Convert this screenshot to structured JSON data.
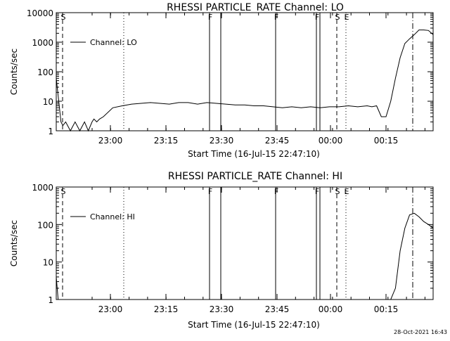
{
  "footer_timestamp": "28-Oct-2021 16:43",
  "chart_data": [
    {
      "type": "line",
      "title": "RHESSI PARTICLE_RATE Channel: LO",
      "xlabel": "Start Time (16-Jul-15 22:47:10)",
      "ylabel": "Counts/sec",
      "yscale": "log",
      "ylim": [
        1,
        10000
      ],
      "y_tick_labels": [
        "1",
        "10",
        "100",
        "1000",
        "10000"
      ],
      "y_tick_values": [
        1,
        10,
        100,
        1000,
        10000
      ],
      "xlim_minutes": [
        0,
        40
      ],
      "x_tick_labels": [
        "23:00",
        "23:15",
        "23:30",
        "23:45",
        "00:00",
        "00:15"
      ],
      "x_tick_minutes": [
        -1.9,
        0.5,
        11.8,
        20.5,
        31.5,
        39.0
      ],
      "legend": "Channel: LO",
      "legend_position": "top-left",
      "markers": [
        {
          "label": "S",
          "type": "dashed",
          "minute": -2.8
        },
        {
          "label": "",
          "type": "dotted",
          "minute": 3.8
        },
        {
          "label": "F",
          "type": "solid",
          "minute": 20.0
        },
        {
          "label": "",
          "type": "solid",
          "minute": 20.6
        },
        {
          "label": "F",
          "type": "solid",
          "minute": 28.5
        },
        {
          "label": "F",
          "type": "solid",
          "minute": 34.1
        },
        {
          "label": "",
          "type": "solid",
          "minute": 34.5
        },
        {
          "label": "S",
          "type": "dashed",
          "minute": 35.1
        },
        {
          "label": "E",
          "type": "dotted",
          "minute": 35.8
        },
        {
          "label": "",
          "type": "dashdot",
          "minute": 38.0
        }
      ],
      "series": [
        {
          "name": "Channel: LO",
          "x": [
            0,
            0.3,
            0.5,
            0.7,
            1.0,
            1.5,
            2.0,
            2.5,
            3.0,
            3.4,
            3.8,
            4.0,
            4.3,
            4.6,
            5.0,
            6.0,
            7.0,
            8.0,
            9.0,
            10.0,
            11.0,
            12.0,
            13.0,
            14.0,
            15.0,
            16.0,
            17.0,
            18.0,
            19.0,
            20.0,
            21.0,
            22.0,
            23.0,
            24.0,
            25.0,
            26.0,
            27.0,
            28.0,
            29.0,
            30.0,
            31.0,
            32.0,
            33.0,
            33.5,
            34.0,
            34.5,
            35.0,
            35.5,
            36.0,
            36.5,
            37.0,
            37.5,
            38.0,
            38.5,
            39.0,
            39.5,
            40.0
          ],
          "values": [
            60,
            8,
            2,
            1.5,
            2,
            1,
            2,
            1,
            2,
            1,
            2,
            2.5,
            2,
            2.5,
            3,
            6,
            7,
            8,
            8.5,
            9,
            8.5,
            8,
            9,
            9,
            8,
            9,
            8.5,
            8,
            7.5,
            7.5,
            7,
            7,
            6.5,
            6,
            6.5,
            6,
            6.5,
            6,
            6.5,
            6.5,
            7,
            6.5,
            7,
            6.5,
            7,
            3,
            3,
            10,
            60,
            300,
            900,
            1300,
            1800,
            2600,
            2600,
            2500,
            1800
          ]
        }
      ]
    },
    {
      "type": "line",
      "title": "RHESSI PARTICLE_RATE Channel: HI",
      "xlabel": "Start Time (16-Jul-15 22:47:10)",
      "ylabel": "Counts/sec",
      "yscale": "log",
      "ylim": [
        1,
        1000
      ],
      "y_tick_labels": [
        "1",
        "10",
        "100",
        "1000"
      ],
      "y_tick_values": [
        1,
        10,
        100,
        1000
      ],
      "xlim_minutes": [
        0,
        40
      ],
      "x_tick_labels": [
        "23:00",
        "23:15",
        "23:30",
        "23:45",
        "00:00",
        "00:15"
      ],
      "x_tick_minutes": [
        -1.9,
        0.5,
        11.8,
        20.5,
        31.5,
        39.0
      ],
      "legend": "Channel: HI",
      "legend_position": "top-left",
      "markers": [
        {
          "label": "S",
          "type": "dashed",
          "minute": -2.8
        },
        {
          "label": "",
          "type": "dotted",
          "minute": 3.8
        },
        {
          "label": "F",
          "type": "solid",
          "minute": 20.0
        },
        {
          "label": "",
          "type": "solid",
          "minute": 20.6
        },
        {
          "label": "F",
          "type": "solid",
          "minute": 28.5
        },
        {
          "label": "F",
          "type": "solid",
          "minute": 34.1
        },
        {
          "label": "",
          "type": "solid",
          "minute": 34.5
        },
        {
          "label": "S",
          "type": "dashed",
          "minute": 35.1
        },
        {
          "label": "E",
          "type": "dotted",
          "minute": 35.8
        },
        {
          "label": "",
          "type": "dashdot",
          "minute": 38.0
        }
      ],
      "series": [
        {
          "name": "Channel: HI",
          "x": [
            0,
            0.2,
            35.5,
            36.0,
            36.5,
            37.0,
            37.5,
            38.0,
            38.5,
            39.0,
            39.5,
            40.0
          ],
          "values": [
            4,
            1,
            1,
            2,
            20,
            80,
            180,
            200,
            160,
            120,
            100,
            80
          ]
        }
      ]
    }
  ]
}
